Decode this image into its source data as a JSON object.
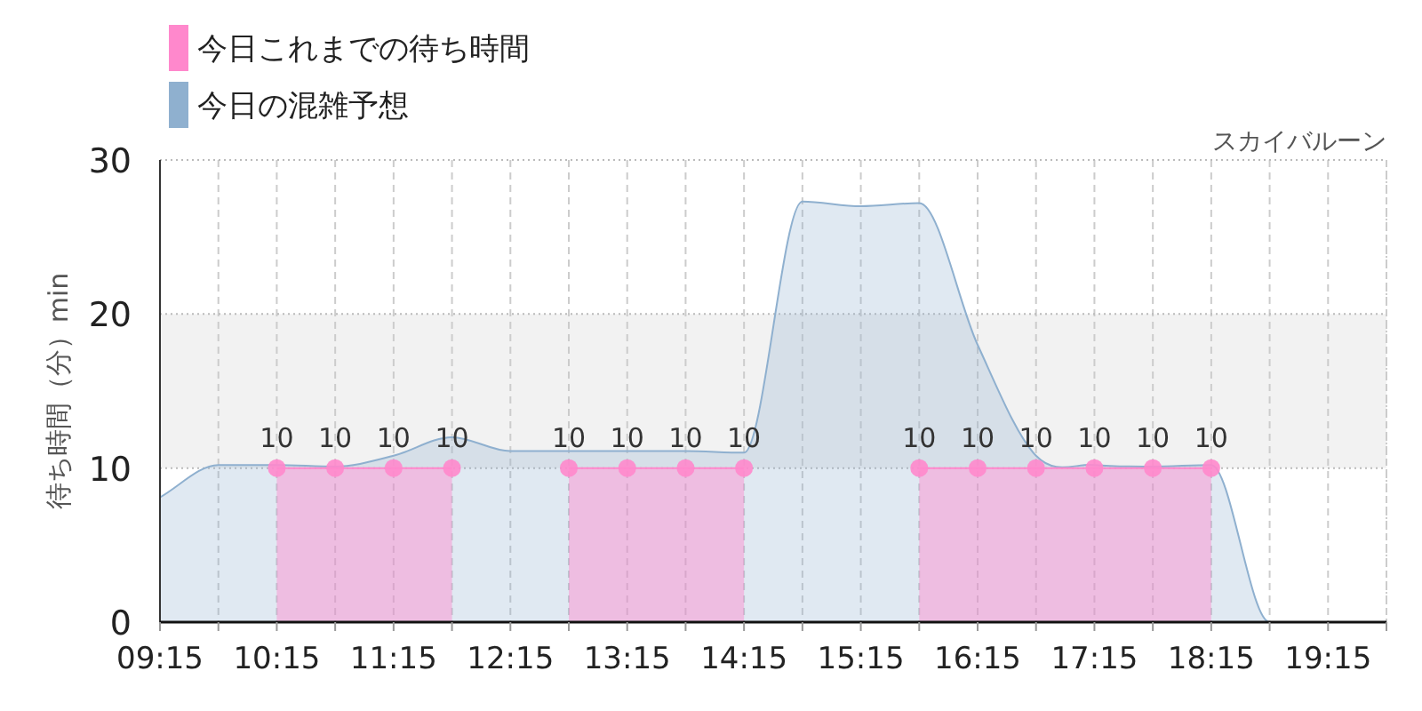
{
  "chart_data": {
    "type": "area",
    "title": "スカイバルーン",
    "ylabel": "待ち時間（分）min",
    "legend": "top left",
    "grid": true,
    "x": [
      9.25,
      9.75,
      10.25,
      10.75,
      11.25,
      11.75,
      12.25,
      12.75,
      13.25,
      13.75,
      14.25,
      14.75,
      15.25,
      15.75,
      16.25,
      16.75,
      17.25,
      17.75,
      18.25,
      18.75,
      19.25,
      19.75
    ],
    "xlim": [
      9.25,
      19.75
    ],
    "xticks": [
      {
        "value": 9.25,
        "label": "09:15"
      },
      {
        "value": 9.75,
        "label": null
      },
      {
        "value": 10.25,
        "label": "10:15"
      },
      {
        "value": 10.75,
        "label": null
      },
      {
        "value": 11.25,
        "label": "11:15"
      },
      {
        "value": 11.75,
        "label": null
      },
      {
        "value": 12.25,
        "label": "12:15"
      },
      {
        "value": 12.75,
        "label": null
      },
      {
        "value": 13.25,
        "label": "13:15"
      },
      {
        "value": 13.75,
        "label": null
      },
      {
        "value": 14.25,
        "label": "14:15"
      },
      {
        "value": 14.75,
        "label": null
      },
      {
        "value": 15.25,
        "label": "15:15"
      },
      {
        "value": 15.75,
        "label": null
      },
      {
        "value": 16.25,
        "label": "16:15"
      },
      {
        "value": 16.75,
        "label": null
      },
      {
        "value": 17.25,
        "label": "17:15"
      },
      {
        "value": 17.75,
        "label": null
      },
      {
        "value": 18.25,
        "label": "18:15"
      },
      {
        "value": 18.75,
        "label": null
      },
      {
        "value": 19.25,
        "label": "19:15"
      },
      {
        "value": 19.75,
        "label": null
      }
    ],
    "ylim": [
      0,
      30
    ],
    "yticks": [
      0,
      10,
      20,
      30
    ],
    "bands": [
      {
        "axis": "y",
        "from": 10,
        "to": 20,
        "color": "#f2f2f2"
      }
    ],
    "series": [
      {
        "name": "今日の混雑予想",
        "color": "#8fb0cf",
        "values": [
          8.1,
          10.2,
          10.2,
          10.1,
          10.8,
          12.0,
          11.1,
          11.1,
          11.1,
          11.1,
          11.0,
          27.3,
          27.0,
          27.2,
          18.0,
          10.8,
          10.2,
          10.1,
          10.2,
          0,
          0,
          0
        ]
      },
      {
        "name": "今日これまでの待ち時間",
        "color": "#ff88cc",
        "marker": "circle",
        "data_labels": true,
        "values": [
          null,
          null,
          10,
          10,
          10,
          10,
          null,
          10,
          10,
          10,
          10,
          null,
          null,
          10,
          10,
          10,
          10,
          10,
          10,
          null,
          null,
          null
        ]
      }
    ]
  }
}
